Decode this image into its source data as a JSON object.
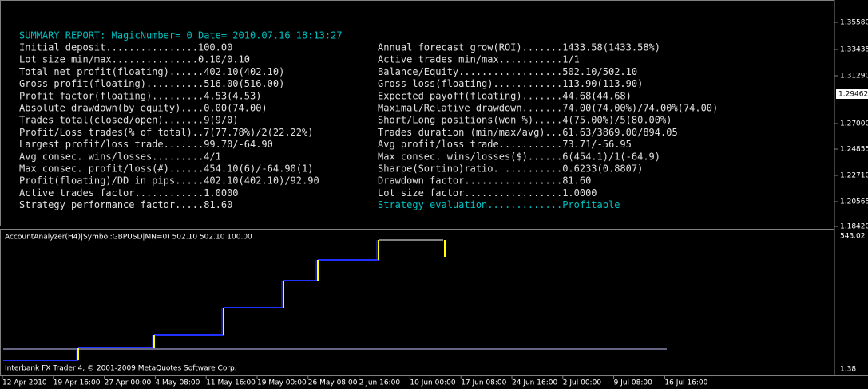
{
  "report": {
    "header": "SUMMARY REPORT: MagicNumber= 0 Date= 2010.07.16 18:13:27",
    "left": [
      "Initial deposit................100.00",
      "Lot size min/max...............0.10/0.10",
      "Total net profit(floating)......402.10(402.10)",
      "Gross profit(floating)..........516.00(516.00)",
      "Profit factor(floating).........4.53(4.53)",
      "Absolute drawdown(by equity)....0.00(74.00)",
      "Trades total(closed/open).......9(9/0)",
      "Profit/Loss trades(% of total)..7(77.78%)/2(22.22%)",
      "Largest profit/loss trade.......99.70/-64.90",
      "Avg consec. wins/losses.........4/1",
      "Max consec. profit/loss(#)......454.10(6)/-64.90(1)",
      "Profit(floating)/DD in pips.....402.10(402.10)/92.90",
      "Active trades factor............1.0000",
      "Strategy performance factor.....81.60"
    ],
    "right": [
      "Annual forecast grow(ROI).......1433.58(1433.58%)",
      "Active trades min/max...........1/1",
      "Balance/Equity..................502.10/502.10",
      "Gross loss(floating)............113.90(113.90)",
      "Expected payoff(floating).......44.68(44.68)",
      "Maximal/Relative drawdown.......74.00(74.00%)/74.00%(74.00)",
      "Short/Long positions(won %).....4(75.00%)/5(80.00%)",
      "Trades duration (min/max/avg)...61.63/3869.00/894.05",
      "Avg profit/loss trade...........73.71/-56.95",
      "Max consec. wins/losses($)......6(454.1)/1(-64.9)",
      "Sharpe(Sortino)ratio. ..........0.6233(0.8807)",
      "Drawdown factor.................81.60",
      "Lot size factor.................1.0000",
      "Strategy evaluation.............Profitable"
    ]
  },
  "price_axis": {
    "ticks": [
      "1.35580",
      "1.33435",
      "1.31290",
      "1.27000",
      "1.24855",
      "1.22710",
      "1.20565",
      "1.18420"
    ],
    "current": "1.29462"
  },
  "indicator": {
    "label": "AccountAnalyzer(H4)|Symbol:GBPUSD|MN=0) 502.10 502.10 100.00",
    "ylim": [
      1.38,
      543.02
    ],
    "balance": [
      59.6,
      106.2,
      152.8,
      251.8,
      350.8,
      426.6,
      499.3
    ],
    "deposit_level": 100.4,
    "copyright": "Interbank FX Trader 4, © 2001-2009 MetaQuotes Software Corp."
  },
  "time_axis": [
    "12 Apr 2010",
    "19 Apr 16:00",
    "27 Apr 00:00",
    "4 May 08:00",
    "11 May 16:00",
    "19 May 00:00",
    "26 May 08:00",
    "2 Jun 16:00",
    "10 Jun 00:00",
    "17 Jun 08:00",
    "24 Jun 16:00",
    "2 Jul 00:00",
    "9 Jul 08:00",
    "16 Jul 16:00"
  ]
}
